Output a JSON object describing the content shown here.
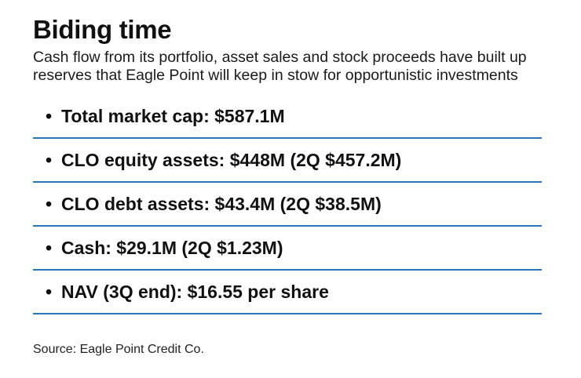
{
  "title": "Biding time",
  "subtitle": "Cash flow from its portfolio, asset sales and stock proceeds have built up reserves that Eagle Point will keep in stow for opportunistic investments",
  "bullet_glyph": "•",
  "stats": [
    "Total market cap: $587.1M",
    "CLO equity assets: $448M (2Q $457.2M)",
    "CLO debt assets: $43.4M (2Q $38.5M)",
    "Cash: $29.1M (2Q $1.23M)",
    "NAV (3Q end): $16.55 per share"
  ],
  "source": "Source: Eagle Point Credit Co.",
  "colors": {
    "rule": "#2b74b9",
    "text": "#111111"
  }
}
